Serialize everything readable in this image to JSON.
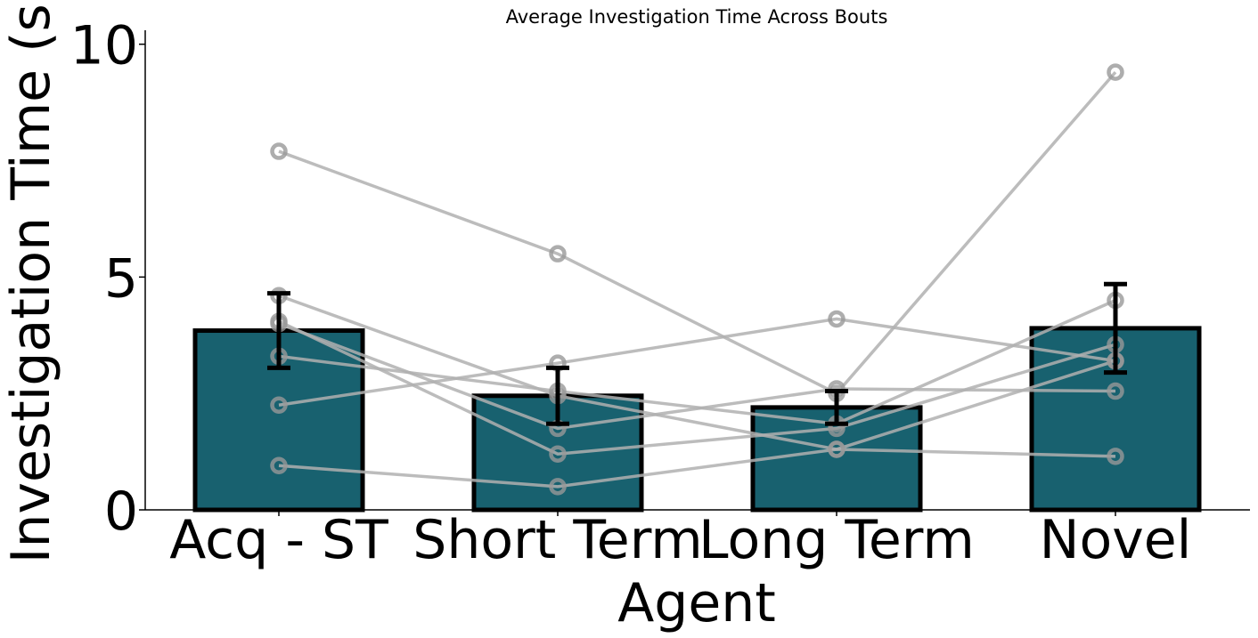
{
  "chart_data": {
    "type": "bar",
    "title": "Average Investigation Time Across Bouts",
    "xlabel": "Agent",
    "ylabel": "Investigation Time (s)",
    "categories": [
      "Acq - ST",
      "Short Term",
      "Long Term",
      "Novel"
    ],
    "values": [
      3.85,
      2.45,
      2.2,
      3.9
    ],
    "errors": [
      0.8,
      0.6,
      0.35,
      0.95
    ],
    "ylim": [
      0,
      10.3
    ],
    "yticks": [
      0,
      5,
      10
    ],
    "bar_color": "#18616f",
    "bar_edge_color": "#000000",
    "line_color": "#b0b0b0",
    "marker_color": "#999999",
    "subjects": [
      [
        7.7,
        5.5,
        2.5,
        9.4
      ],
      [
        4.6,
        2.45,
        1.3,
        3.2
      ],
      [
        4.05,
        1.2,
        1.75,
        3.55
      ],
      [
        4.0,
        1.75,
        2.6,
        2.55
      ],
      [
        3.3,
        2.55,
        1.85,
        4.5
      ],
      [
        2.25,
        3.15,
        4.1,
        3.2
      ],
      [
        0.95,
        0.5,
        1.3,
        1.15
      ]
    ]
  }
}
